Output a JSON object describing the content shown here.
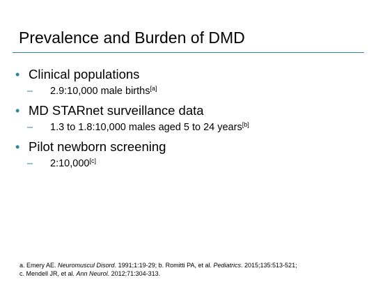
{
  "slide": {
    "title": "Prevalence and Burden of DMD",
    "accent_color": "#31859b"
  },
  "bullets": [
    {
      "text": "Clinical populations",
      "sub": {
        "text": "2.9:10,000 male births",
        "ref": "[a]"
      }
    },
    {
      "text": "MD STARnet surveillance data",
      "sub": {
        "text": "1.3 to 1.8:10,000 males aged 5 to 24 years",
        "ref": "[b]"
      }
    },
    {
      "text": "Pilot newborn screening",
      "sub": {
        "text": "2:10,000",
        "ref": "[c]"
      }
    }
  ],
  "markers": {
    "level1": "•",
    "level2": "–"
  },
  "references": {
    "a_pre": "a. Emery AE. ",
    "a_journal": "Neuromuscul Disord",
    "a_post": ". 1991;1:19-29; b. Romitti PA, et al. ",
    "b_journal": "Pediatrics",
    "b_post": ". 2015;135:513-521;",
    "c_pre": "c. Mendell JR, et al. ",
    "c_journal": "Ann Neurol",
    "c_post": ". 2012;71:304-313."
  }
}
